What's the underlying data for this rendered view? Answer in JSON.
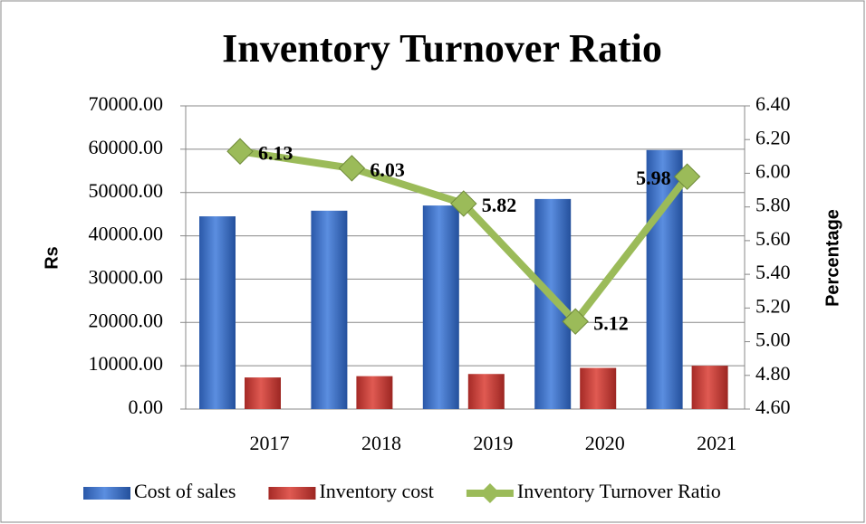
{
  "chart_data": {
    "type": "bar-line",
    "title": "Inventory Turnover Ratio",
    "categories": [
      "2017",
      "2018",
      "2019",
      "2020",
      "2021"
    ],
    "y_label": "Rs",
    "y2_label": "Percentage",
    "series": [
      {
        "name": "Cost of sales",
        "color": "#3b6fc6",
        "type": "bar",
        "values": [
          44500,
          45800,
          47000,
          48500,
          59800
        ]
      },
      {
        "name": "Inventory cost",
        "color": "#c43a35",
        "type": "bar",
        "values": [
          7300,
          7600,
          8100,
          9500,
          10000
        ]
      },
      {
        "name": "Inventory Turnover Ratio",
        "color": "#9bbb59",
        "type": "line",
        "axis": "y2",
        "values": [
          6.13,
          6.03,
          5.82,
          5.12,
          5.98
        ]
      }
    ],
    "ylim": [
      0,
      70000
    ],
    "yticks": [
      {
        "value": 0,
        "label": "0.00"
      },
      {
        "value": 10000,
        "label": "10000.00"
      },
      {
        "value": 20000,
        "label": "20000.00"
      },
      {
        "value": 30000,
        "label": "30000.00"
      },
      {
        "value": 40000,
        "label": "40000.00"
      },
      {
        "value": 50000,
        "label": "50000.00"
      },
      {
        "value": 60000,
        "label": "60000.00"
      },
      {
        "value": 70000,
        "label": "70000.00"
      }
    ],
    "y2lim": [
      4.6,
      6.4
    ],
    "y2ticks": [
      {
        "value": 4.6,
        "label": "4.60"
      },
      {
        "value": 4.8,
        "label": "4.80"
      },
      {
        "value": 5,
        "label": "5.00"
      },
      {
        "value": 5.2,
        "label": "5.20"
      },
      {
        "value": 5.4,
        "label": "5.40"
      },
      {
        "value": 5.6,
        "label": "5.60"
      },
      {
        "value": 5.8,
        "label": "5.80"
      },
      {
        "value": 6,
        "label": "6.00"
      },
      {
        "value": 6.2,
        "label": "6.20"
      },
      {
        "value": 6.4,
        "label": "6.40"
      }
    ],
    "grid": true,
    "legend": "bottom"
  }
}
